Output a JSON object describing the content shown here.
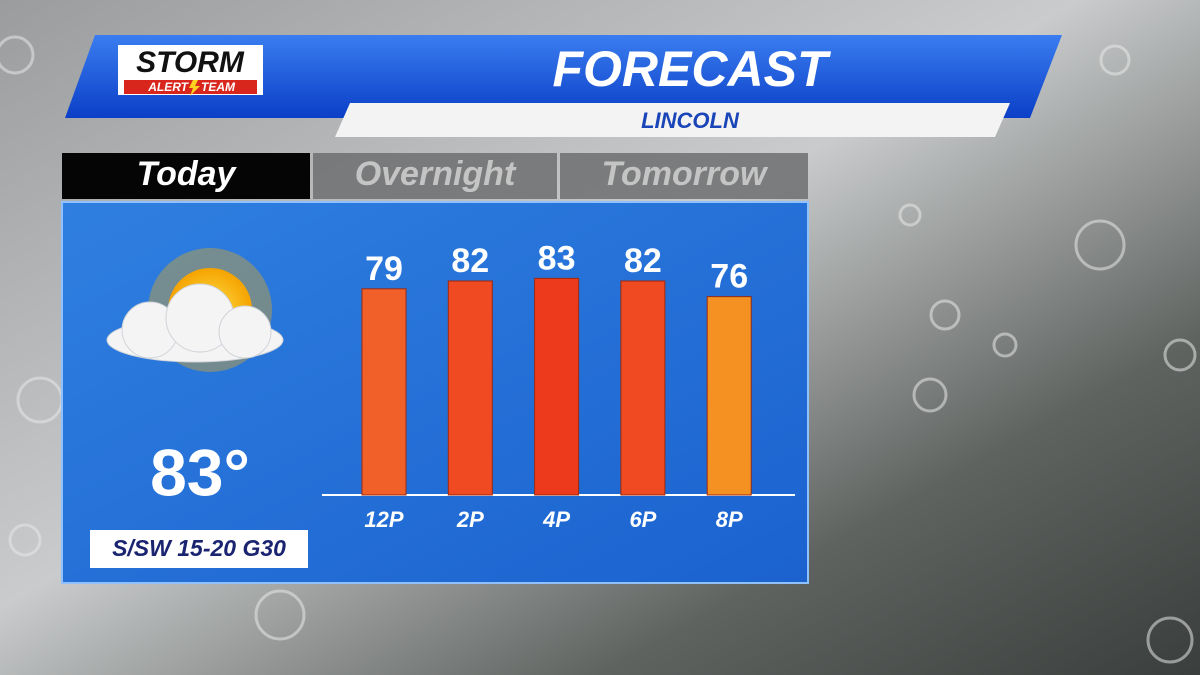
{
  "header": {
    "logo_top": "STORM",
    "logo_bottom_left": "ALERT",
    "logo_bottom_right": "TEAM",
    "title": "FORECAST",
    "location": "LINCOLN"
  },
  "tabs": [
    "Today",
    "Overnight",
    "Tomorrow"
  ],
  "current": {
    "temperature": "83°",
    "wind": "S/SW 15-20 G30"
  },
  "chart_data": {
    "type": "bar",
    "categories": [
      "12P",
      "2P",
      "4P",
      "6P",
      "8P"
    ],
    "values": [
      79,
      82,
      83,
      82,
      76
    ],
    "colors": [
      "#f2602a",
      "#ef4a22",
      "#ee3a1c",
      "#ef4a22",
      "#f59022"
    ]
  }
}
